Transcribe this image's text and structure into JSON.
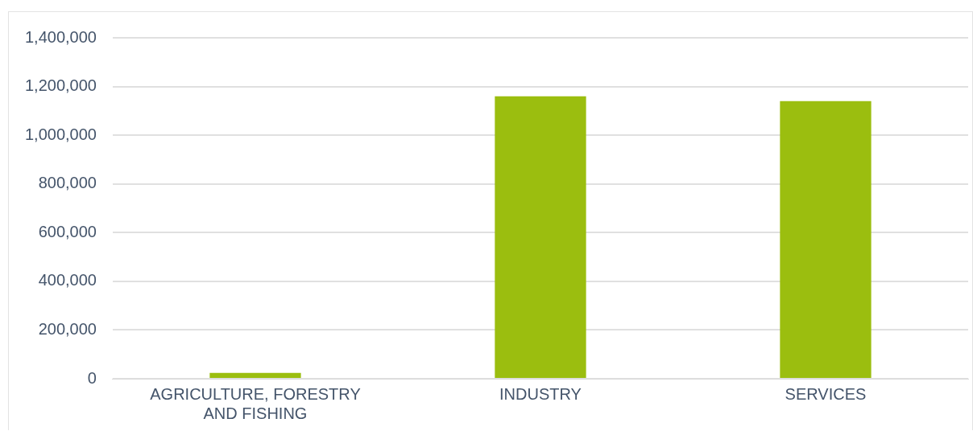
{
  "chart_data": {
    "type": "bar",
    "categories": [
      "AGRICULTURE, FORESTRY AND FISHING",
      "INDUSTRY",
      "SERVICES"
    ],
    "values": [
      24000,
      1160000,
      1140000
    ],
    "color": "#9bbe0f",
    "ylim": [
      0,
      1400000
    ],
    "yticks": [
      0,
      {
        "value": 200000,
        "label": "200,000"
      },
      {
        "value": 400000,
        "label": "400,000"
      },
      {
        "value": 600000,
        "label": "600,000"
      },
      {
        "value": 800000,
        "label": "800,000"
      },
      {
        "value": 1000000,
        "label": "1,000,000"
      },
      {
        "value": 1200000,
        "label": "1,200,000"
      },
      {
        "value": 1400000,
        "label": "1,400,000"
      }
    ],
    "grid": "y",
    "legend": false
  }
}
